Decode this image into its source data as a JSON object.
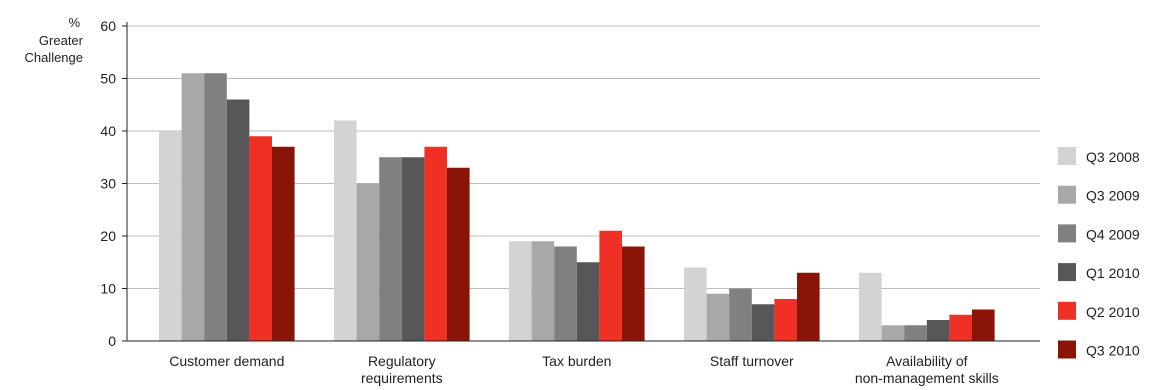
{
  "chart_data": {
    "type": "bar",
    "ylabel": [
      "%",
      "Greater",
      "Challenge"
    ],
    "ylim": [
      0,
      60
    ],
    "yticks": [
      "0",
      "10",
      "20",
      "30",
      "40",
      "50",
      "60"
    ],
    "grid": true,
    "legend_position": "right",
    "categories": [
      [
        "Customer demand"
      ],
      [
        "Regulatory",
        "requirements"
      ],
      [
        "Tax burden"
      ],
      [
        "Staff turnover"
      ],
      [
        "Availability of",
        "non-management skills"
      ]
    ],
    "series": [
      {
        "name": "Q3 2008",
        "color": "#d3d3d3",
        "values": [
          40,
          42,
          19,
          14,
          13
        ]
      },
      {
        "name": "Q3 2009",
        "color": "#a7a8aa",
        "values": [
          51,
          30,
          19,
          9,
          3
        ]
      },
      {
        "name": "Q4 2009",
        "color": "#808083",
        "values": [
          51,
          35,
          18,
          10,
          3
        ]
      },
      {
        "name": "Q1 2010",
        "color": "#575759",
        "values": [
          46,
          35,
          15,
          7,
          4
        ]
      },
      {
        "name": "Q2 2010",
        "color": "#ee3124",
        "values": [
          39,
          37,
          21,
          8,
          5
        ]
      },
      {
        "name": "Q3 2010",
        "color": "#8b1409",
        "values": [
          37,
          33,
          18,
          13,
          6
        ]
      }
    ]
  }
}
